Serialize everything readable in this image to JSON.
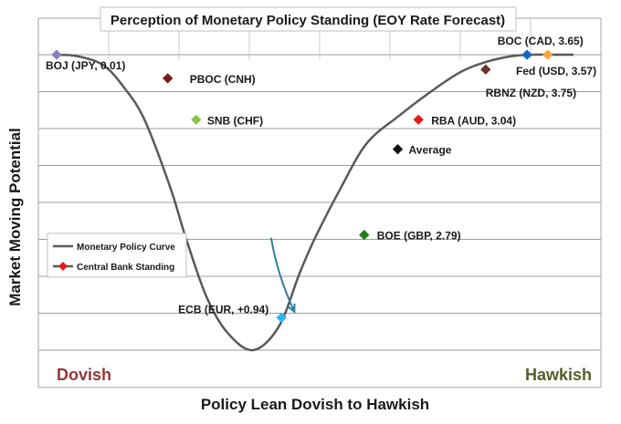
{
  "chart_data": {
    "type": "line",
    "title": "Perception of Monetary Policy Standing (EOY Rate Forecast)",
    "xlabel": "Policy Lean Dovish to Hawkish",
    "ylabel": "Market Moving Potential",
    "corner_labels": {
      "left": "Dovish",
      "right": "Hawkish"
    },
    "grid": true,
    "legend": {
      "placement": "left-middle",
      "entries": [
        {
          "name": "Monetary Policy Curve",
          "marker": "line",
          "color": "#595959"
        },
        {
          "name": "Central Bank Standing",
          "marker": "diamond",
          "color": "#e31a1c"
        }
      ]
    },
    "curve": {
      "x": [
        0,
        4,
        9,
        13,
        17,
        22,
        25,
        29,
        33,
        38,
        43,
        47,
        50,
        55,
        60,
        66,
        72,
        78,
        83,
        88,
        92,
        96,
        100
      ],
      "y": [
        100,
        99.5,
        96.5,
        89,
        78,
        55,
        38,
        18,
        6,
        0,
        8,
        26,
        38,
        55,
        70,
        79,
        87,
        94,
        97.5,
        99.5,
        100,
        100,
        100
      ]
    },
    "points": [
      {
        "label": "BOJ (JPY, 0.01)",
        "x": 0,
        "y": 100,
        "color": "#8e7cc3"
      },
      {
        "label": "PBOC (CNH)",
        "x": 21.5,
        "y": 92,
        "color": "#7b1b1b"
      },
      {
        "label": "SNB (CHF)",
        "x": 27,
        "y": 78,
        "color": "#8bc34a"
      },
      {
        "label": "ECB (EUR, +0.94)",
        "x": 43.5,
        "y": 11,
        "color": "#29b6f6"
      },
      {
        "label": "BOE (GBP, 2.79)",
        "x": 59.5,
        "y": 39,
        "color": "#1b7f1b"
      },
      {
        "label": "Average",
        "x": 66,
        "y": 68,
        "color": "#111111"
      },
      {
        "label": "RBA (AUD, 3.04)",
        "x": 70,
        "y": 78,
        "color": "#e31a1c"
      },
      {
        "label": "RBNZ (NZD, 3.75)",
        "x": 83,
        "y": 95,
        "color": "#6d3328"
      },
      {
        "label": "Fed (USD, 3.57)",
        "x": 91,
        "y": 100,
        "color": "#1565c0"
      },
      {
        "label": "BOC (CAD, 3.65)",
        "x": 95,
        "y": 100,
        "color": "#ffa040"
      }
    ],
    "arrow": {
      "from": [
        41.5,
        38
      ],
      "to": [
        46,
        13
      ],
      "color": "#2e7d99"
    },
    "colors": {
      "dovish": "#953735",
      "hawkish": "#4f6228",
      "curve": "#595959"
    }
  }
}
